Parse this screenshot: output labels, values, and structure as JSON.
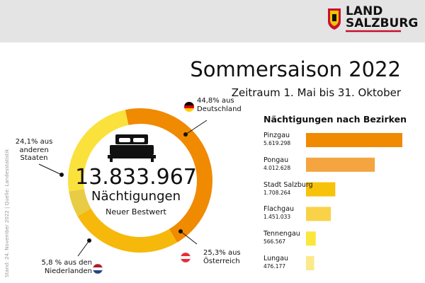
{
  "header": {
    "logo_line1": "LAND",
    "logo_line2": "SALZBURG"
  },
  "title": "Sommersaison 2022",
  "subtitle": "Zeitraum 1. Mai bis 31. Oktober",
  "source_note": "Stand: 24. November 2022 | Quelle: Landesstatistik",
  "chart_data": [
    {
      "type": "donut",
      "values": [
        44.8,
        25.3,
        5.8,
        24.1
      ],
      "value_labels": [
        "44,8% aus Deutschland",
        "25,3% aus Österreich",
        "5,8 % aus den Niederlanden",
        "24,1% aus anderen Staaten"
      ],
      "colors": [
        "#f08a00",
        "#f6b80a",
        "#e9cc45",
        "#fbe13c"
      ],
      "total": {
        "value": 13833967,
        "label": "13.833.967"
      },
      "total_caption": "Nächtigungen",
      "note": "Neuer Bestwert"
    },
    {
      "type": "hbar",
      "title": "Nächtigungen nach Bezirken",
      "categories": [
        "Pinzgau",
        "Pongau",
        "Stadt Salzburg",
        "Flachgau",
        "Tennengau",
        "Lungau"
      ],
      "values": [
        5619298,
        4012628,
        1708264,
        1451033,
        566567,
        476177
      ],
      "value_labels": [
        "5.619.298",
        "4.012.628",
        "1.708.264",
        "1.451.033",
        "566.567",
        "476.177"
      ],
      "colors": [
        "#f08a00",
        "#f4a540",
        "#f7c20a",
        "#f9d24a",
        "#fbe63c",
        "#fbe98a"
      ]
    }
  ]
}
